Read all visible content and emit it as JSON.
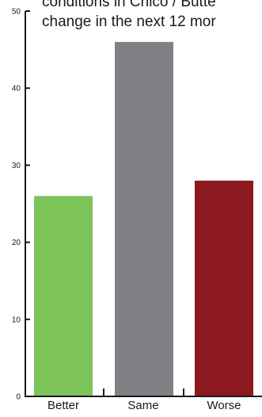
{
  "chart_data": {
    "type": "bar",
    "title_lines": [
      "conditions in Chico / Butte",
      "change in the next 12 mor"
    ],
    "categories": [
      "Better",
      "Same",
      "Worse"
    ],
    "values": [
      26,
      46,
      28
    ],
    "colors": [
      "#7cc45a",
      "#808184",
      "#8c1820"
    ],
    "y_ticks": [
      "0",
      "10",
      "20",
      "30",
      "40",
      "50"
    ],
    "ylim": [
      0,
      50
    ],
    "xlabel": "",
    "ylabel": "",
    "grid": false,
    "legend": "none"
  }
}
